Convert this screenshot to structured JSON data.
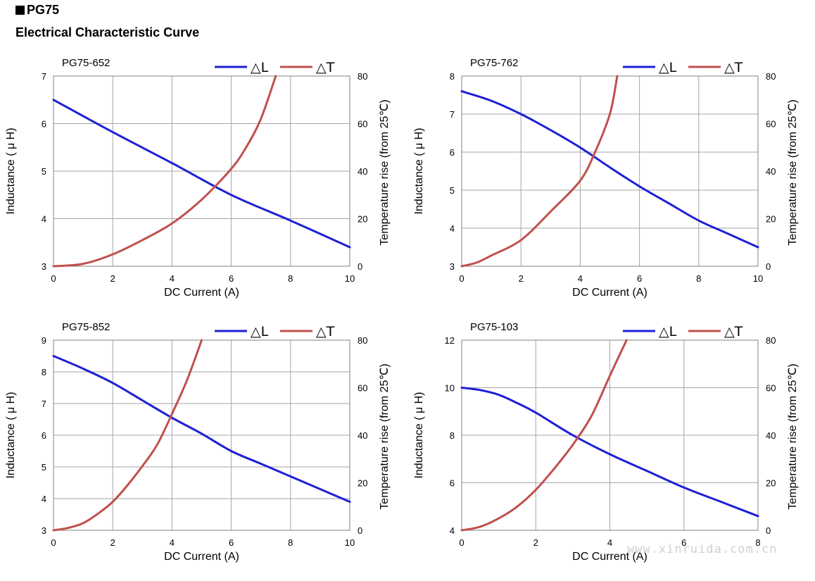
{
  "header": {
    "series_title": "PG75",
    "subtitle": "Electrical Characteristic Curve"
  },
  "watermark": "www.xinruida.com.cn",
  "colors": {
    "inductance": "#1f1fd6",
    "temperature": "#c0504d",
    "grid": "#a6a6a6"
  },
  "chart_data": [
    {
      "type": "line",
      "title": "PG75-652",
      "xlabel": "DC Current (A)",
      "ylabel": "Inductance ( μ H)",
      "y2label": "Temperature rise (from 25℃)",
      "xlim": [
        0,
        10
      ],
      "xticks": [
        "0",
        "2",
        "4",
        "6",
        "8",
        "10"
      ],
      "ylim": [
        3,
        7
      ],
      "yticks": [
        "3",
        "4",
        "5",
        "6",
        "7"
      ],
      "y2lim": [
        0,
        80
      ],
      "y2ticks": [
        "0",
        "20",
        "40",
        "60",
        "80"
      ],
      "legend": [
        "△L",
        "△T"
      ],
      "grid": true,
      "series": [
        {
          "name": "△L",
          "axis": "left",
          "x": [
            0,
            2,
            4,
            6,
            8,
            10
          ],
          "y": [
            6.5,
            5.82,
            5.17,
            4.5,
            3.96,
            3.4
          ]
        },
        {
          "name": "△T",
          "axis": "right",
          "x": [
            0,
            1,
            2,
            3,
            4,
            5,
            6,
            6.5,
            7,
            7.5
          ],
          "y": [
            0,
            1,
            5,
            11,
            18,
            28,
            41,
            50,
            62,
            80
          ]
        }
      ]
    },
    {
      "type": "line",
      "title": "PG75-762",
      "xlabel": "DC Current (A)",
      "ylabel": "Inductance ( μ H)",
      "y2label": "Temperature rise (from 25℃)",
      "xlim": [
        0,
        10
      ],
      "xticks": [
        "0",
        "2",
        "4",
        "6",
        "8",
        "10"
      ],
      "ylim": [
        3,
        8
      ],
      "yticks": [
        "3",
        "4",
        "5",
        "6",
        "7",
        "8"
      ],
      "y2lim": [
        0,
        80
      ],
      "y2ticks": [
        "0",
        "20",
        "40",
        "60",
        "80"
      ],
      "legend": [
        "△L",
        "△T"
      ],
      "grid": true,
      "series": [
        {
          "name": "△L",
          "axis": "left",
          "x": [
            0,
            1,
            2,
            3,
            4,
            5,
            6,
            7,
            8,
            9,
            10
          ],
          "y": [
            7.6,
            7.35,
            7.0,
            6.58,
            6.12,
            5.6,
            5.1,
            4.65,
            4.2,
            3.85,
            3.5
          ]
        },
        {
          "name": "△T",
          "axis": "right",
          "x": [
            0,
            0.5,
            1,
            2,
            3,
            4,
            4.5,
            5,
            5.25
          ],
          "y": [
            0,
            1.5,
            4.5,
            11,
            23,
            36,
            48,
            64,
            80
          ]
        }
      ]
    },
    {
      "type": "line",
      "title": "PG75-852",
      "xlabel": "DC Current (A)",
      "ylabel": "Inductance ( μ H)",
      "y2label": "Temperature rise (from 25℃)",
      "xlim": [
        0,
        10
      ],
      "xticks": [
        "0",
        "2",
        "4",
        "6",
        "8",
        "10"
      ],
      "ylim": [
        3,
        9
      ],
      "yticks": [
        "3",
        "4",
        "5",
        "6",
        "7",
        "8",
        "9"
      ],
      "y2lim": [
        0,
        80
      ],
      "y2ticks": [
        "0",
        "20",
        "40",
        "60",
        "80"
      ],
      "legend": [
        "△L",
        "△T"
      ],
      "grid": true,
      "series": [
        {
          "name": "△L",
          "axis": "left",
          "x": [
            0,
            1,
            2,
            3,
            4,
            5,
            6,
            7,
            8,
            9,
            10
          ],
          "y": [
            8.5,
            8.1,
            7.65,
            7.1,
            6.55,
            6.05,
            5.5,
            5.1,
            4.7,
            4.3,
            3.9
          ]
        },
        {
          "name": "△T",
          "axis": "right",
          "x": [
            0,
            0.5,
            1,
            1.5,
            2,
            2.5,
            3,
            3.5,
            4,
            4.5,
            5
          ],
          "y": [
            0,
            1,
            3,
            7,
            12,
            19,
            27,
            36,
            49,
            63,
            80
          ]
        }
      ]
    },
    {
      "type": "line",
      "title": "PG75-103",
      "xlabel": "DC Current (A)",
      "ylabel": "Inductance ( μ H)",
      "y2label": "Temperature rise (from 25℃)",
      "xlim": [
        0,
        8
      ],
      "xticks": [
        "0",
        "2",
        "4",
        "6",
        "8"
      ],
      "ylim": [
        4,
        12
      ],
      "yticks": [
        "4",
        "6",
        "8",
        "10",
        "12"
      ],
      "y2lim": [
        0,
        80
      ],
      "y2ticks": [
        "0",
        "20",
        "40",
        "60",
        "80"
      ],
      "legend": [
        "△L",
        "△T"
      ],
      "grid": true,
      "series": [
        {
          "name": "△L",
          "axis": "left",
          "x": [
            0,
            0.5,
            1,
            1.5,
            2,
            3,
            4,
            5,
            6,
            7,
            8
          ],
          "y": [
            10.0,
            9.9,
            9.7,
            9.35,
            8.95,
            8.0,
            7.2,
            6.5,
            5.8,
            5.2,
            4.6
          ]
        },
        {
          "name": "△T",
          "axis": "right",
          "x": [
            0,
            0.5,
            1,
            1.5,
            2,
            2.5,
            3,
            3.5,
            4,
            4.45
          ],
          "y": [
            0,
            1.5,
            5,
            10,
            17,
            26,
            36,
            48,
            65,
            80
          ]
        }
      ]
    }
  ]
}
